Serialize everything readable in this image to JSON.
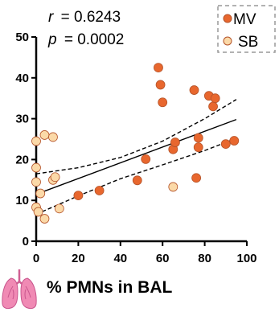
{
  "chart_data": {
    "type": "scatter",
    "xlabel": "% PMNs in BAL",
    "ylabel": "",
    "xlim": [
      0,
      100
    ],
    "ylim": [
      0,
      50
    ],
    "xticks": [
      "0",
      "20",
      "40",
      "60",
      "80",
      "100"
    ],
    "yticks": [
      "0",
      "10",
      "20",
      "30",
      "40",
      "50"
    ],
    "annotations": {
      "r_label": "r",
      "r_value": "= 0.6243",
      "p_label": "p",
      "p_value": "= 0.0002"
    },
    "legend": {
      "placement": "top-right",
      "style": "dashed-box"
    },
    "grid": false,
    "series": [
      {
        "name": "MV",
        "color": "#e8672e",
        "points": [
          [
            20,
            11.2
          ],
          [
            30,
            12.4
          ],
          [
            48,
            14.9
          ],
          [
            52,
            20.1
          ],
          [
            58,
            42.5
          ],
          [
            59,
            38.3
          ],
          [
            60,
            34.0
          ],
          [
            65,
            22.5
          ],
          [
            66,
            24.2
          ],
          [
            75,
            37.0
          ],
          [
            76,
            15.5
          ],
          [
            77,
            25.3
          ],
          [
            77,
            23.0
          ],
          [
            82,
            35.6
          ],
          [
            84,
            33.0
          ],
          [
            85,
            35.0
          ],
          [
            90,
            23.8
          ],
          [
            94,
            24.6
          ]
        ]
      },
      {
        "name": "SB",
        "color": "#fbd9a8",
        "points": [
          [
            0,
            24.5
          ],
          [
            0,
            18.0
          ],
          [
            0,
            14.5
          ],
          [
            0,
            8.3
          ],
          [
            1,
            7.2
          ],
          [
            2,
            11.7
          ],
          [
            4,
            5.5
          ],
          [
            4,
            26.0
          ],
          [
            8,
            25.5
          ],
          [
            8,
            15.0
          ],
          [
            9,
            15.7
          ],
          [
            11,
            8.0
          ],
          [
            65,
            13.3
          ]
        ]
      }
    ],
    "fit_line": {
      "x": [
        0,
        95
      ],
      "y": [
        11.5,
        29.8
      ]
    },
    "confidence_band": {
      "upper": {
        "x": [
          0,
          20,
          40,
          60,
          80,
          95
        ],
        "y": [
          16.5,
          18.0,
          20.5,
          24.5,
          30.0,
          34.7
        ]
      },
      "lower": {
        "x": [
          0,
          20,
          40,
          60,
          80,
          95
        ],
        "y": [
          6.6,
          11.1,
          15.3,
          18.7,
          22.2,
          25.2
        ]
      }
    }
  },
  "icons": {
    "lungs": "lungs-icon"
  },
  "colors": {
    "mv": "#e8672e",
    "sb": "#fbd9a8",
    "marker_edge": "#b5542a",
    "lungs": "#f08ab4"
  }
}
